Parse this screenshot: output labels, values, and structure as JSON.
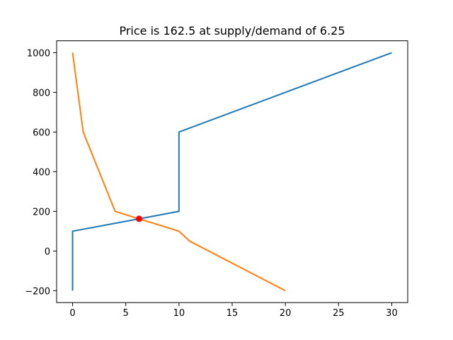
{
  "chart_data": {
    "type": "line",
    "title": "Price is 162.5 at supply/demand of 6.25",
    "series": [
      {
        "color": "#1f77b4",
        "x": [
          0,
          0,
          10,
          10,
          30
        ],
        "values": [
          -200,
          100,
          200,
          600,
          1000
        ]
      },
      {
        "color": "#ff7f0e",
        "x": [
          0,
          1,
          4,
          10,
          11,
          20
        ],
        "values": [
          1000,
          600,
          200,
          100,
          50,
          -200
        ]
      }
    ],
    "point": {
      "x": 6.25,
      "y": 162.5,
      "color": "red"
    },
    "xlim": [
      -1.5,
      31.5
    ],
    "ylim": [
      -260,
      1060
    ],
    "xticks": [
      0,
      5,
      10,
      15,
      20,
      25,
      30
    ],
    "yticks": [
      {
        "value": -200,
        "label": "−200"
      },
      0,
      200,
      400,
      600,
      800,
      1000
    ],
    "grid": false
  }
}
